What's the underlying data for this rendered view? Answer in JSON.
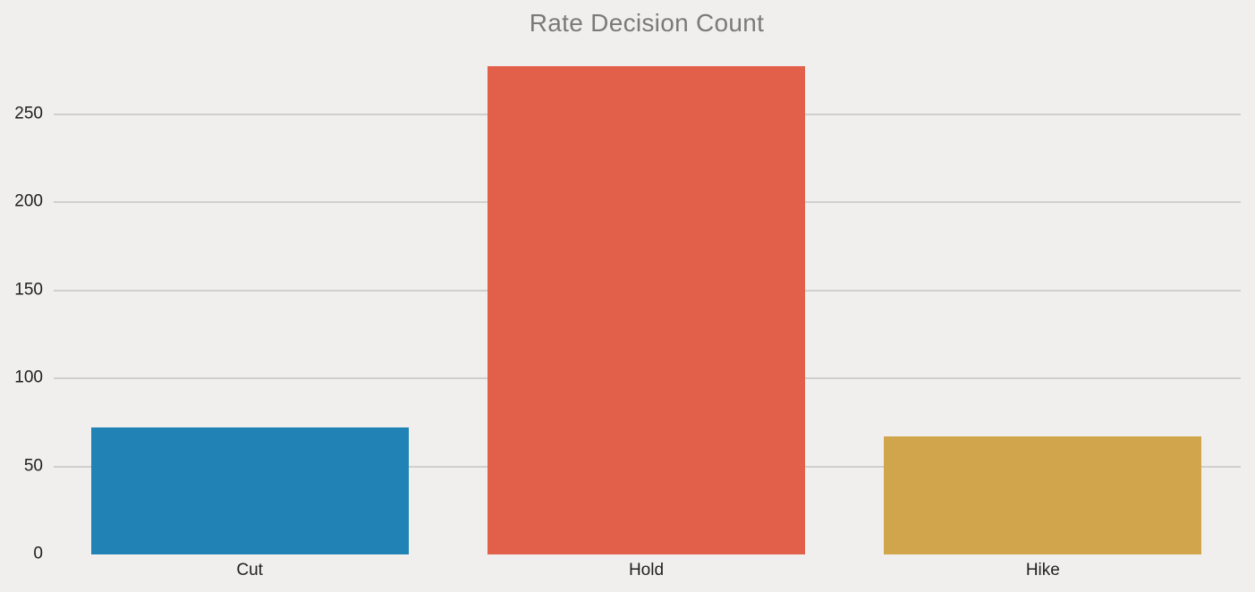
{
  "chart_data": {
    "type": "bar",
    "title": "Rate Decision Count",
    "categories": [
      "Cut",
      "Hold",
      "Hike"
    ],
    "values": [
      72,
      277,
      67
    ],
    "bar_colors": [
      "#2183b5",
      "#e2604a",
      "#d1a54c"
    ],
    "yticks": [
      0,
      50,
      100,
      150,
      200,
      250
    ],
    "ylim": [
      0,
      285
    ],
    "xlabel": "",
    "ylabel": "",
    "grid": "horizontal-only",
    "legend_position": "none",
    "colors": {
      "background": "#f0efee",
      "gridline": "#d0cfce",
      "title_text": "#7a7a7a",
      "axis_text": "#1f1f1f"
    }
  }
}
